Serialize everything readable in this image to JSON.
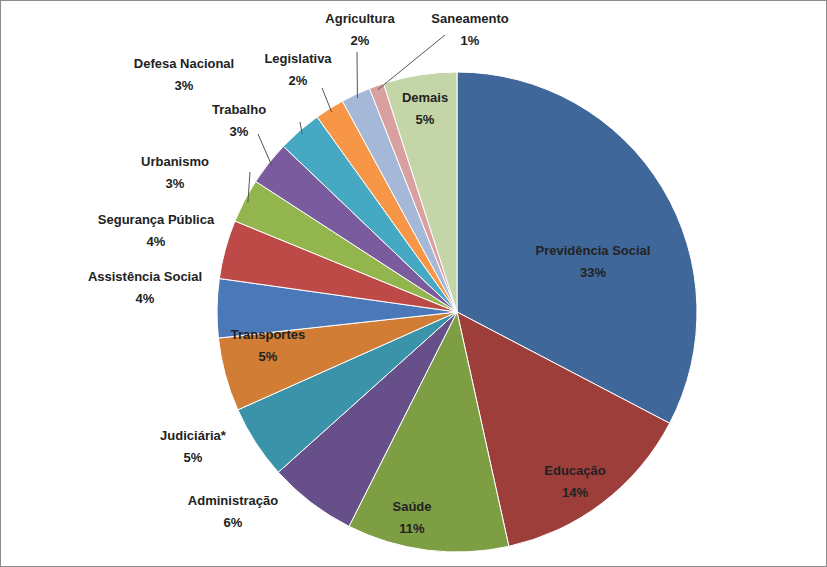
{
  "chart_data": {
    "type": "pie",
    "categories": [
      "Previdência Social",
      "Educação",
      "Saúde",
      "Administração",
      "Judiciária*",
      "Transportes",
      "Assistência Social",
      "Segurança Pública",
      "Urbanismo",
      "Trabalho",
      "Defesa Nacional",
      "Legislativa",
      "Agricultura",
      "Saneamento",
      "Demais"
    ],
    "values": [
      33,
      14,
      11,
      6,
      5,
      5,
      4,
      4,
      3,
      3,
      3,
      2,
      2,
      1,
      5
    ],
    "value_labels": [
      "33%",
      "14%",
      "11%",
      "6%",
      "5%",
      "5%",
      "4%",
      "4%",
      "3%",
      "3%",
      "3%",
      "2%",
      "2%",
      "1%",
      "5%"
    ],
    "colors": [
      "#3f6799",
      "#9e3e3b",
      "#7d9e43",
      "#674f89",
      "#3a93a8",
      "#d17d36",
      "#4a78b8",
      "#be4a47",
      "#93b54e",
      "#7a5c9e",
      "#45a9c4",
      "#f79646",
      "#a6b8d8",
      "#d9a0a0",
      "#c4d5a8"
    ],
    "data_labels": true
  }
}
